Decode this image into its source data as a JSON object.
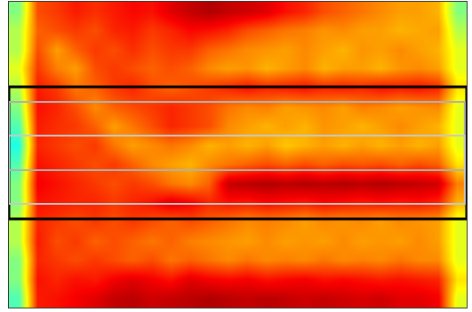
{
  "chart_data": {
    "type": "heatmap",
    "color": "Jet",
    "tick_labels": false,
    "grid": false,
    "xlim": [
      -0.5,
      23.5
    ],
    "ylim": [
      -0.5,
      15.5
    ],
    "xticks": [],
    "yticks": [],
    "zlim": [
      0,
      1
    ],
    "x": [
      0,
      1,
      2,
      3,
      4,
      5,
      6,
      7,
      8,
      9,
      10,
      11,
      12,
      13,
      14,
      15,
      16,
      17,
      18,
      19,
      20,
      21,
      22,
      23
    ],
    "y": [
      15,
      14,
      13,
      12,
      11,
      10,
      9,
      8,
      7,
      6,
      5,
      4,
      3,
      2,
      1,
      0
    ],
    "cells": [
      [
        0.5,
        0.8,
        0.82,
        0.85,
        0.83,
        0.85,
        0.87,
        0.86,
        0.9,
        0.93,
        0.95,
        0.93,
        0.92,
        0.9,
        0.86,
        0.84,
        0.8,
        0.78,
        0.76,
        0.74,
        0.72,
        0.72,
        0.7,
        0.5
      ],
      [
        0.55,
        0.78,
        0.8,
        0.82,
        0.8,
        0.84,
        0.85,
        0.82,
        0.84,
        0.87,
        0.86,
        0.84,
        0.8,
        0.78,
        0.76,
        0.75,
        0.73,
        0.74,
        0.72,
        0.72,
        0.7,
        0.71,
        0.72,
        0.55
      ],
      [
        0.55,
        0.8,
        0.72,
        0.78,
        0.82,
        0.8,
        0.83,
        0.8,
        0.82,
        0.82,
        0.78,
        0.76,
        0.74,
        0.73,
        0.72,
        0.74,
        0.72,
        0.7,
        0.73,
        0.72,
        0.74,
        0.72,
        0.7,
        0.6
      ],
      [
        0.6,
        0.82,
        0.75,
        0.72,
        0.8,
        0.82,
        0.8,
        0.78,
        0.8,
        0.78,
        0.74,
        0.72,
        0.73,
        0.7,
        0.72,
        0.74,
        0.7,
        0.72,
        0.72,
        0.7,
        0.73,
        0.74,
        0.72,
        0.6
      ],
      [
        0.55,
        0.85,
        0.82,
        0.76,
        0.78,
        0.82,
        0.84,
        0.8,
        0.78,
        0.8,
        0.82,
        0.84,
        0.86,
        0.84,
        0.85,
        0.86,
        0.84,
        0.85,
        0.84,
        0.86,
        0.85,
        0.86,
        0.84,
        0.65
      ],
      [
        0.5,
        0.86,
        0.84,
        0.8,
        0.74,
        0.78,
        0.8,
        0.82,
        0.84,
        0.82,
        0.8,
        0.76,
        0.74,
        0.75,
        0.72,
        0.73,
        0.74,
        0.72,
        0.75,
        0.74,
        0.72,
        0.73,
        0.74,
        0.6
      ],
      [
        0.45,
        0.85,
        0.83,
        0.82,
        0.78,
        0.72,
        0.76,
        0.8,
        0.84,
        0.82,
        0.8,
        0.74,
        0.72,
        0.7,
        0.72,
        0.7,
        0.73,
        0.72,
        0.7,
        0.72,
        0.74,
        0.72,
        0.7,
        0.6
      ],
      [
        0.4,
        0.84,
        0.82,
        0.8,
        0.82,
        0.76,
        0.72,
        0.74,
        0.76,
        0.74,
        0.7,
        0.72,
        0.7,
        0.72,
        0.68,
        0.7,
        0.72,
        0.7,
        0.72,
        0.7,
        0.72,
        0.7,
        0.72,
        0.6
      ],
      [
        0.45,
        0.86,
        0.84,
        0.82,
        0.8,
        0.82,
        0.78,
        0.74,
        0.72,
        0.7,
        0.74,
        0.76,
        0.78,
        0.8,
        0.78,
        0.8,
        0.78,
        0.8,
        0.79,
        0.8,
        0.78,
        0.8,
        0.78,
        0.65
      ],
      [
        0.5,
        0.88,
        0.86,
        0.84,
        0.82,
        0.8,
        0.82,
        0.8,
        0.76,
        0.74,
        0.78,
        0.93,
        0.94,
        0.95,
        0.94,
        0.95,
        0.94,
        0.95,
        0.94,
        0.95,
        0.94,
        0.93,
        0.92,
        0.75
      ],
      [
        0.5,
        0.86,
        0.85,
        0.84,
        0.84,
        0.82,
        0.84,
        0.86,
        0.9,
        0.88,
        0.84,
        0.86,
        0.85,
        0.87,
        0.86,
        0.85,
        0.87,
        0.86,
        0.85,
        0.86,
        0.85,
        0.86,
        0.84,
        0.7
      ],
      [
        0.55,
        0.84,
        0.82,
        0.8,
        0.82,
        0.8,
        0.82,
        0.8,
        0.78,
        0.8,
        0.78,
        0.76,
        0.74,
        0.75,
        0.74,
        0.72,
        0.74,
        0.73,
        0.74,
        0.72,
        0.74,
        0.73,
        0.72,
        0.6
      ],
      [
        0.55,
        0.85,
        0.8,
        0.82,
        0.78,
        0.8,
        0.78,
        0.76,
        0.78,
        0.75,
        0.74,
        0.73,
        0.72,
        0.74,
        0.72,
        0.73,
        0.72,
        0.74,
        0.72,
        0.73,
        0.72,
        0.74,
        0.72,
        0.6
      ],
      [
        0.5,
        0.84,
        0.82,
        0.8,
        0.82,
        0.8,
        0.78,
        0.8,
        0.76,
        0.78,
        0.76,
        0.74,
        0.76,
        0.74,
        0.75,
        0.74,
        0.76,
        0.74,
        0.75,
        0.74,
        0.76,
        0.74,
        0.74,
        0.6
      ],
      [
        0.5,
        0.86,
        0.84,
        0.86,
        0.85,
        0.88,
        0.9,
        0.88,
        0.86,
        0.9,
        0.88,
        0.87,
        0.88,
        0.86,
        0.87,
        0.88,
        0.86,
        0.87,
        0.86,
        0.85,
        0.86,
        0.85,
        0.84,
        0.65
      ],
      [
        0.45,
        0.85,
        0.86,
        0.88,
        0.9,
        0.93,
        0.94,
        0.92,
        0.93,
        0.94,
        0.95,
        0.94,
        0.93,
        0.94,
        0.93,
        0.92,
        0.93,
        0.92,
        0.91,
        0.92,
        0.9,
        0.9,
        0.88,
        0.6
      ]
    ],
    "regions": [
      {
        "x0": -0.5,
        "x1": 23.5,
        "y0": 4.14,
        "y1": 11.05,
        "color": "#000000"
      },
      {
        "x0": -0.5,
        "x1": 23.4,
        "y0": 6.69,
        "y1": 10.26,
        "color": "#b0b0b0"
      },
      {
        "x0": -0.5,
        "x1": 23.4,
        "y0": 4.93,
        "y1": 8.5,
        "color": "#c8c8c8"
      }
    ]
  }
}
